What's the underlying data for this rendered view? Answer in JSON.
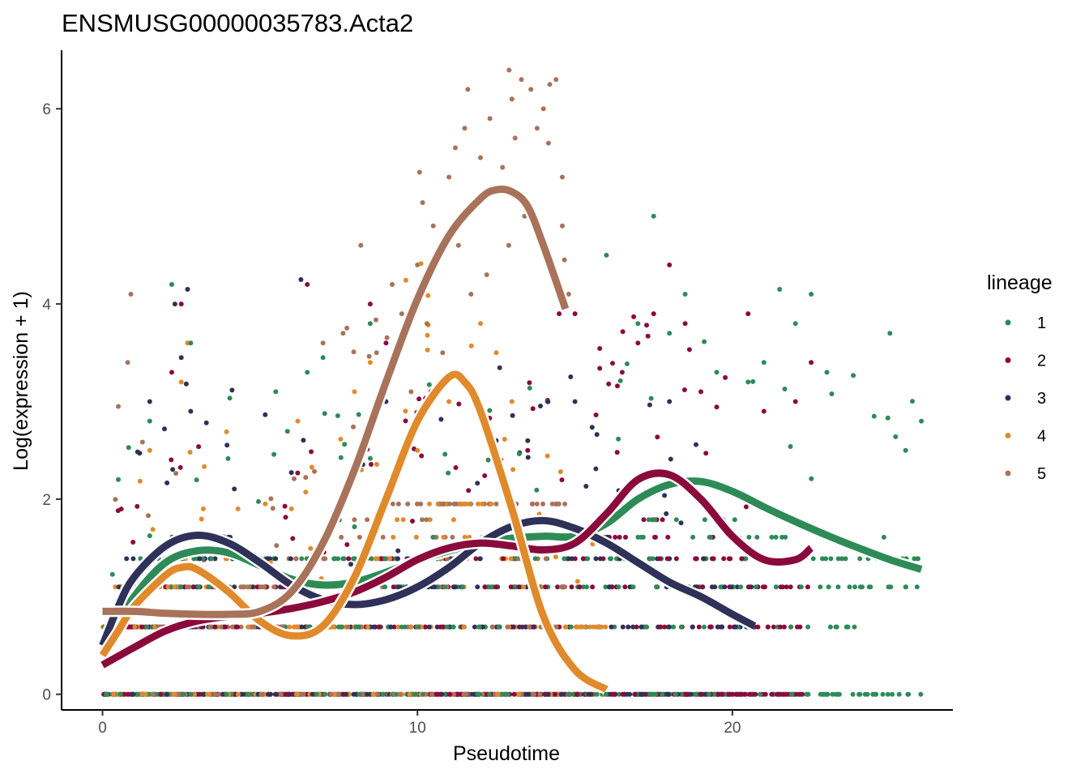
{
  "chart_data": {
    "type": "scatter",
    "title": "ENSMUSG00000035783.Acta2",
    "xlabel": "Pseudotime",
    "ylabel": "Log(expression + 1)",
    "xlim": [
      -1.3,
      27.0
    ],
    "ylim": [
      -0.16,
      6.6
    ],
    "x_ticks": [
      0,
      10,
      20
    ],
    "x_tick_labels": [
      "0",
      "10",
      "20"
    ],
    "y_ticks": [
      0,
      2,
      4,
      6
    ],
    "y_tick_labels": [
      "0",
      "2",
      "4",
      "6"
    ],
    "grid": false,
    "legend": {
      "title": "lineage",
      "position": "right",
      "entries": [
        {
          "label": "1",
          "color": "#2E8B57"
        },
        {
          "label": "2",
          "color": "#8B0A3C"
        },
        {
          "label": "3",
          "color": "#2F3158"
        },
        {
          "label": "4",
          "color": "#E08A2C"
        },
        {
          "label": "5",
          "color": "#A8735A"
        }
      ]
    },
    "series": [
      {
        "name": "1",
        "color": "#2E8B57",
        "x_range": [
          0,
          26
        ],
        "smooth": [
          [
            0,
            0.5
          ],
          [
            1,
            1.0
          ],
          [
            2,
            1.35
          ],
          [
            3,
            1.47
          ],
          [
            4,
            1.45
          ],
          [
            5,
            1.32
          ],
          [
            6,
            1.18
          ],
          [
            7,
            1.12
          ],
          [
            8,
            1.15
          ],
          [
            9,
            1.25
          ],
          [
            10,
            1.37
          ],
          [
            11,
            1.47
          ],
          [
            12,
            1.55
          ],
          [
            13,
            1.6
          ],
          [
            14,
            1.62
          ],
          [
            15,
            1.62
          ],
          [
            16,
            1.75
          ],
          [
            17,
            2.0
          ],
          [
            18,
            2.15
          ],
          [
            19,
            2.18
          ],
          [
            20,
            2.08
          ],
          [
            21,
            1.92
          ],
          [
            22,
            1.77
          ],
          [
            23,
            1.63
          ],
          [
            24,
            1.5
          ],
          [
            25,
            1.38
          ],
          [
            26,
            1.28
          ]
        ],
        "points": [
          [
            0.5,
            2.2
          ],
          [
            1.5,
            2.8
          ],
          [
            2.2,
            4.2
          ],
          [
            2.8,
            3.6
          ],
          [
            5.5,
            3.1
          ],
          [
            6.5,
            3.3
          ],
          [
            7.0,
            3.45
          ],
          [
            8.5,
            3.8
          ],
          [
            17.0,
            3.8
          ],
          [
            17.5,
            4.9
          ],
          [
            18.0,
            3.7
          ],
          [
            18.5,
            4.1
          ],
          [
            19.5,
            3.3
          ],
          [
            21.5,
            4.15
          ],
          [
            22.0,
            3.8
          ],
          [
            22.5,
            4.1
          ],
          [
            23.0,
            3.3
          ],
          [
            24.5,
            2.85
          ],
          [
            25.0,
            3.7
          ],
          [
            25.5,
            2.5
          ],
          [
            26.0,
            2.8
          ],
          [
            16.0,
            4.5
          ],
          [
            20.5,
            3.2
          ],
          [
            21.0,
            3.4
          ]
        ]
      },
      {
        "name": "2",
        "color": "#8B0A3C",
        "x_range": [
          0,
          22.5
        ],
        "smooth": [
          [
            0,
            0.3
          ],
          [
            1,
            0.48
          ],
          [
            2,
            0.65
          ],
          [
            3,
            0.75
          ],
          [
            4,
            0.8
          ],
          [
            5,
            0.83
          ],
          [
            6,
            0.88
          ],
          [
            7,
            0.95
          ],
          [
            8,
            1.05
          ],
          [
            9,
            1.2
          ],
          [
            10,
            1.38
          ],
          [
            11,
            1.5
          ],
          [
            12,
            1.55
          ],
          [
            13,
            1.52
          ],
          [
            14,
            1.48
          ],
          [
            15,
            1.55
          ],
          [
            16,
            1.85
          ],
          [
            17,
            2.2
          ],
          [
            18,
            2.25
          ],
          [
            19,
            2.0
          ],
          [
            20,
            1.62
          ],
          [
            21,
            1.38
          ],
          [
            22,
            1.38
          ],
          [
            22.5,
            1.5
          ]
        ],
        "points": [
          [
            2.2,
            3.3
          ],
          [
            2.5,
            4.0
          ],
          [
            6.5,
            4.2
          ],
          [
            8.5,
            4.0
          ],
          [
            9.0,
            3.6
          ],
          [
            14.5,
            3.9
          ],
          [
            15.0,
            3.9
          ],
          [
            16.5,
            3.3
          ],
          [
            17.0,
            3.6
          ],
          [
            17.5,
            3.9
          ],
          [
            18.0,
            4.4
          ],
          [
            18.5,
            3.8
          ],
          [
            19.0,
            3.1
          ],
          [
            20.5,
            3.9
          ],
          [
            21.0,
            2.9
          ],
          [
            22.0,
            3.0
          ],
          [
            22.5,
            3.4
          ],
          [
            13.5,
            2.5
          ],
          [
            12.0,
            2.8
          ]
        ]
      },
      {
        "name": "3",
        "color": "#2F3158",
        "x_range": [
          0,
          20.7
        ],
        "smooth": [
          [
            0,
            0.5
          ],
          [
            0.5,
            0.9
          ],
          [
            1,
            1.2
          ],
          [
            2,
            1.52
          ],
          [
            3,
            1.63
          ],
          [
            4,
            1.55
          ],
          [
            5,
            1.35
          ],
          [
            6,
            1.12
          ],
          [
            7,
            0.97
          ],
          [
            8,
            0.92
          ],
          [
            9,
            0.97
          ],
          [
            10,
            1.1
          ],
          [
            11,
            1.3
          ],
          [
            12,
            1.55
          ],
          [
            13,
            1.72
          ],
          [
            14,
            1.78
          ],
          [
            15,
            1.7
          ],
          [
            16,
            1.55
          ],
          [
            17,
            1.35
          ],
          [
            18,
            1.15
          ],
          [
            19,
            1.0
          ],
          [
            20,
            0.82
          ],
          [
            20.7,
            0.7
          ]
        ],
        "points": [
          [
            2.3,
            4.0
          ],
          [
            2.7,
            4.15
          ],
          [
            2.5,
            3.45
          ],
          [
            6.3,
            4.25
          ],
          [
            1.5,
            3.0
          ],
          [
            2.8,
            2.9
          ],
          [
            9.0,
            3.0
          ],
          [
            12.5,
            2.6
          ],
          [
            13.5,
            2.6
          ],
          [
            15.0,
            3.0
          ],
          [
            18.0,
            3.0
          ]
        ]
      },
      {
        "name": "4",
        "color": "#E08A2C",
        "x_range": [
          0,
          16
        ],
        "smooth": [
          [
            0,
            0.4
          ],
          [
            0.5,
            0.65
          ],
          [
            1,
            0.9
          ],
          [
            2,
            1.22
          ],
          [
            2.5,
            1.3
          ],
          [
            3,
            1.28
          ],
          [
            4,
            1.05
          ],
          [
            5,
            0.75
          ],
          [
            6,
            0.6
          ],
          [
            7,
            0.7
          ],
          [
            8,
            1.2
          ],
          [
            9,
            2.0
          ],
          [
            10,
            2.8
          ],
          [
            11,
            3.25
          ],
          [
            11.5,
            3.2
          ],
          [
            12,
            2.9
          ],
          [
            13,
            1.9
          ],
          [
            14,
            0.8
          ],
          [
            15,
            0.25
          ],
          [
            16,
            0.05
          ]
        ],
        "points": [
          [
            2.5,
            3.2
          ],
          [
            2.7,
            3.6
          ],
          [
            1.5,
            2.5
          ],
          [
            3.2,
            1.9
          ],
          [
            4.3,
            1.9
          ],
          [
            6.0,
            1.9
          ],
          [
            6.2,
            2.8
          ],
          [
            8.0,
            3.1
          ],
          [
            8.5,
            3.4
          ],
          [
            10.0,
            2.5
          ],
          [
            11.0,
            3.0
          ],
          [
            12.0,
            3.8
          ],
          [
            12.5,
            3.5
          ],
          [
            13.0,
            3.0
          ],
          [
            14.0,
            1.6
          ]
        ]
      },
      {
        "name": "5",
        "color": "#A8735A",
        "x_range": [
          0,
          14.7
        ],
        "smooth": [
          [
            0,
            0.85
          ],
          [
            1,
            0.85
          ],
          [
            2,
            0.83
          ],
          [
            3,
            0.82
          ],
          [
            4,
            0.82
          ],
          [
            5,
            0.85
          ],
          [
            6,
            1.05
          ],
          [
            7,
            1.55
          ],
          [
            8,
            2.3
          ],
          [
            9,
            3.2
          ],
          [
            10,
            4.05
          ],
          [
            11,
            4.7
          ],
          [
            12,
            5.08
          ],
          [
            12.5,
            5.17
          ],
          [
            13,
            5.15
          ],
          [
            13.5,
            5.0
          ],
          [
            14,
            4.6
          ],
          [
            14.7,
            3.95
          ]
        ],
        "points": [
          [
            0.5,
            2.95
          ],
          [
            0.8,
            3.4
          ],
          [
            0.9,
            4.1
          ],
          [
            7.0,
            3.6
          ],
          [
            8.2,
            4.6
          ],
          [
            8.7,
            3.5
          ],
          [
            9.2,
            4.2
          ],
          [
            9.5,
            3.9
          ],
          [
            10.0,
            4.4
          ],
          [
            10.5,
            4.8
          ],
          [
            11.0,
            5.3
          ],
          [
            11.2,
            5.6
          ],
          [
            11.5,
            5.8
          ],
          [
            11.6,
            6.2
          ],
          [
            12.0,
            5.5
          ],
          [
            12.3,
            5.9
          ],
          [
            12.7,
            5.4
          ],
          [
            13.0,
            6.1
          ],
          [
            13.1,
            5.7
          ],
          [
            13.3,
            6.3
          ],
          [
            13.6,
            6.2
          ],
          [
            13.8,
            5.8
          ],
          [
            14.0,
            6.0
          ],
          [
            14.2,
            6.25
          ],
          [
            14.4,
            6.3
          ],
          [
            14.6,
            5.3
          ],
          [
            14.8,
            4.1
          ],
          [
            13.4,
            4.9
          ],
          [
            12.9,
            4.6
          ],
          [
            12.2,
            4.3
          ],
          [
            11.7,
            4.1
          ],
          [
            11.3,
            4.6
          ],
          [
            10.8,
            3.5
          ],
          [
            10.3,
            3.8
          ],
          [
            9.8,
            3.1
          ],
          [
            14.6,
            4.8
          ]
        ]
      }
    ]
  }
}
